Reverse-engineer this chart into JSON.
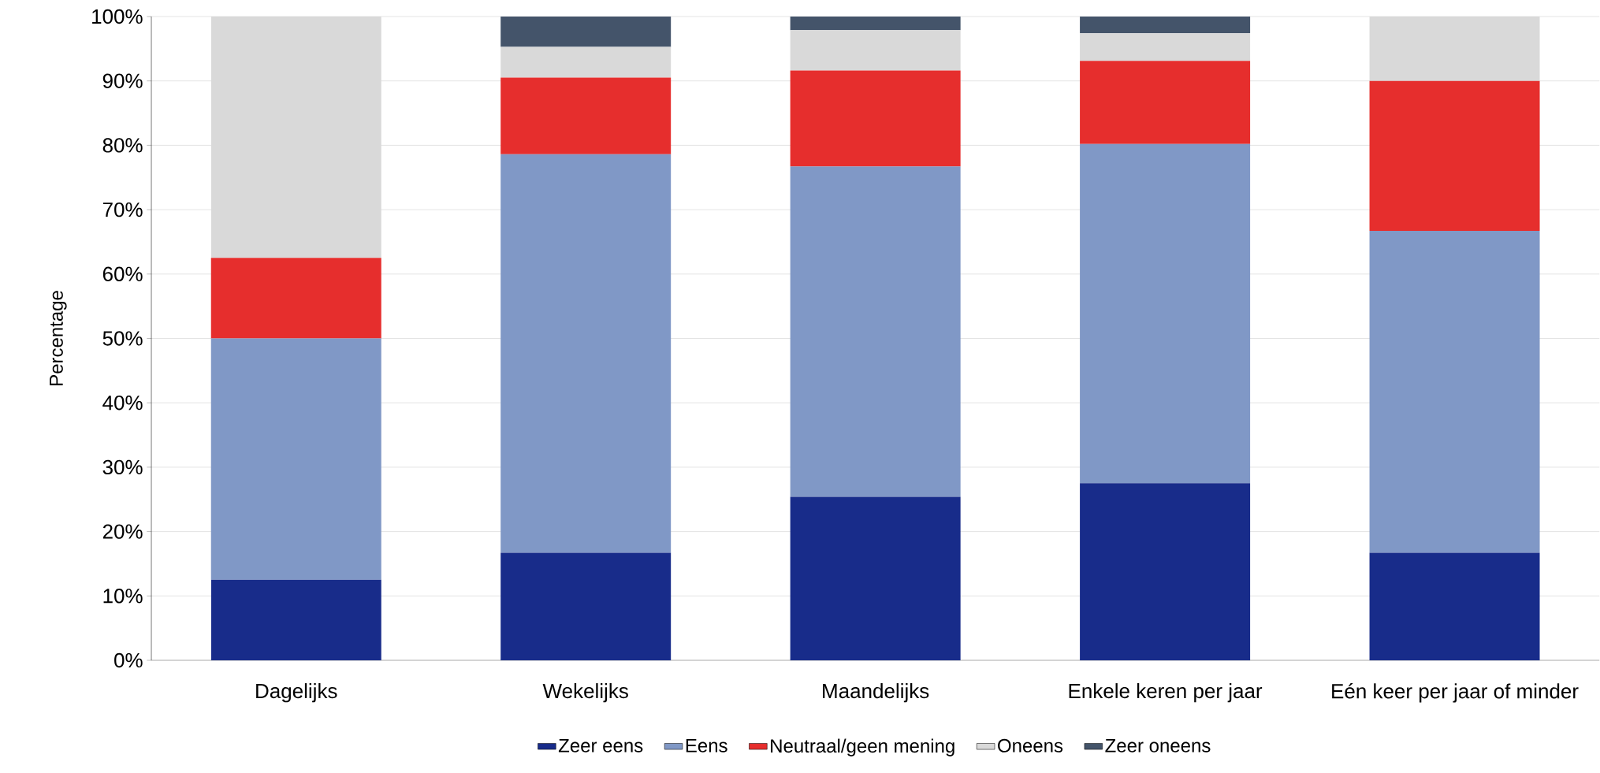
{
  "chart_data": {
    "type": "bar",
    "stacked": true,
    "ylabel": "Percentage",
    "categories": [
      "Dagelijks",
      "Wekelijks",
      "Maandelijks",
      "Enkele keren per jaar",
      "Eén keer per jaar of minder"
    ],
    "series": [
      {
        "name": "Zeer eens",
        "color": "#182c8a",
        "values": [
          12.5,
          16.7,
          25.4,
          27.5,
          16.7
        ]
      },
      {
        "name": "Eens",
        "color": "#8098c6",
        "values": [
          37.5,
          61.9,
          51.3,
          52.7,
          50.0
        ]
      },
      {
        "name": "Neutraal/geen mening",
        "color": "#e62e2d",
        "values": [
          12.5,
          11.9,
          14.9,
          12.9,
          23.3
        ]
      },
      {
        "name": "Oneens",
        "color": "#d9d9d9",
        "values": [
          37.5,
          4.8,
          6.3,
          4.3,
          10.0
        ]
      },
      {
        "name": "Zeer oneens",
        "color": "#44546a",
        "values": [
          0,
          4.7,
          2.1,
          2.6,
          0
        ]
      }
    ],
    "ylim": [
      0,
      100
    ],
    "yticks": [
      {
        "value": 0,
        "label": "0%"
      },
      {
        "value": 10,
        "label": "10%"
      },
      {
        "value": 20,
        "label": "20%"
      },
      {
        "value": 30,
        "label": "30%"
      },
      {
        "value": 40,
        "label": "40%"
      },
      {
        "value": 50,
        "label": "50%"
      },
      {
        "value": 60,
        "label": "60%"
      },
      {
        "value": 70,
        "label": "70%"
      },
      {
        "value": 80,
        "label": "80%"
      },
      {
        "value": 90,
        "label": "90%"
      },
      {
        "value": 100,
        "label": "100%"
      }
    ],
    "grid": "y",
    "legend": "bottom"
  }
}
